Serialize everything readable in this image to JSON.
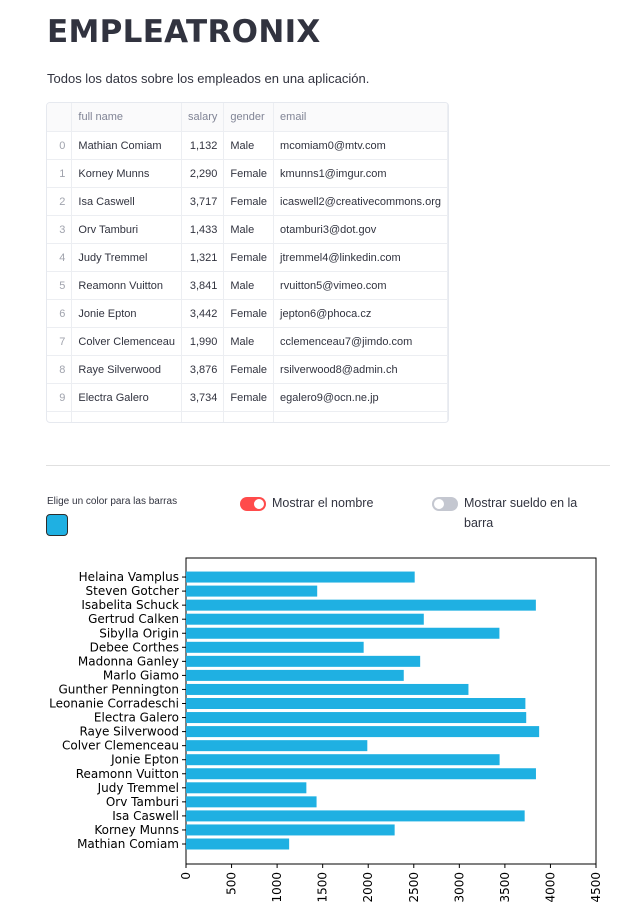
{
  "app": {
    "title": "EMPLEATRONIX",
    "subtitle": "Todos los datos sobre los empleados en una aplicación."
  },
  "table": {
    "columns": [
      "",
      "full name",
      "salary",
      "gender",
      "email"
    ],
    "rows": [
      [
        "0",
        "Mathian Comiam",
        "1,132",
        "Male",
        "mcomiam0@mtv.com"
      ],
      [
        "1",
        "Korney Munns",
        "2,290",
        "Female",
        "kmunns1@imgur.com"
      ],
      [
        "2",
        "Isa Caswell",
        "3,717",
        "Female",
        "icaswell2@creativecommons.org"
      ],
      [
        "3",
        "Orv Tamburi",
        "1,433",
        "Male",
        "otamburi3@dot.gov"
      ],
      [
        "4",
        "Judy Tremmel",
        "1,321",
        "Female",
        "jtremmel4@linkedin.com"
      ],
      [
        "5",
        "Reamonn Vuitton",
        "3,841",
        "Male",
        "rvuitton5@vimeo.com"
      ],
      [
        "6",
        "Jonie Epton",
        "3,442",
        "Female",
        "jepton6@phoca.cz"
      ],
      [
        "7",
        "Colver Clemenceau",
        "1,990",
        "Male",
        "cclemenceau7@jimdo.com"
      ],
      [
        "8",
        "Raye Silverwood",
        "3,876",
        "Female",
        "rsilverwood8@admin.ch"
      ],
      [
        "9",
        "Electra Galero",
        "3,734",
        "Female",
        "egalero9@ocn.ne.jp"
      ]
    ]
  },
  "controls": {
    "color_label": "Elige un color para las barras",
    "color_value": "#1fb0e2",
    "toggle_name_label": "Mostrar el nombre",
    "toggle_name_on": true,
    "toggle_salary_label": "Mostrar sueldo en la barra",
    "toggle_salary_on": false,
    "toggle_on_color": "#ff4b4b",
    "toggle_off_color": "#c4c7d0"
  },
  "chart_data": {
    "type": "bar",
    "orientation": "horizontal",
    "color": "#1fb0e2",
    "categories": [
      "Mathian Comiam",
      "Korney Munns",
      "Isa Caswell",
      "Orv Tamburi",
      "Judy Tremmel",
      "Reamonn Vuitton",
      "Jonie Epton",
      "Colver Clemenceau",
      "Raye Silverwood",
      "Electra Galero",
      "Leonanie Corradeschi",
      "Gunther Pennington",
      "Marlo Giamo",
      "Madonna Ganley",
      "Debee Corthes",
      "Sibylla Origin",
      "Gertrud Calken",
      "Isabelita Schuck",
      "Steven Gotcher",
      "Helaina Vamplus"
    ],
    "values": [
      1132,
      2290,
      3717,
      1433,
      1321,
      3841,
      3442,
      1990,
      3876,
      3734,
      3725,
      3100,
      2390,
      2570,
      1950,
      3440,
      2610,
      3840,
      1440,
      2510
    ],
    "xlim": [
      0,
      4500
    ],
    "xticks": [
      "0",
      "500",
      "1000",
      "1500",
      "2000",
      "2500",
      "3000",
      "3500",
      "4000",
      "4500"
    ],
    "grid": false
  }
}
